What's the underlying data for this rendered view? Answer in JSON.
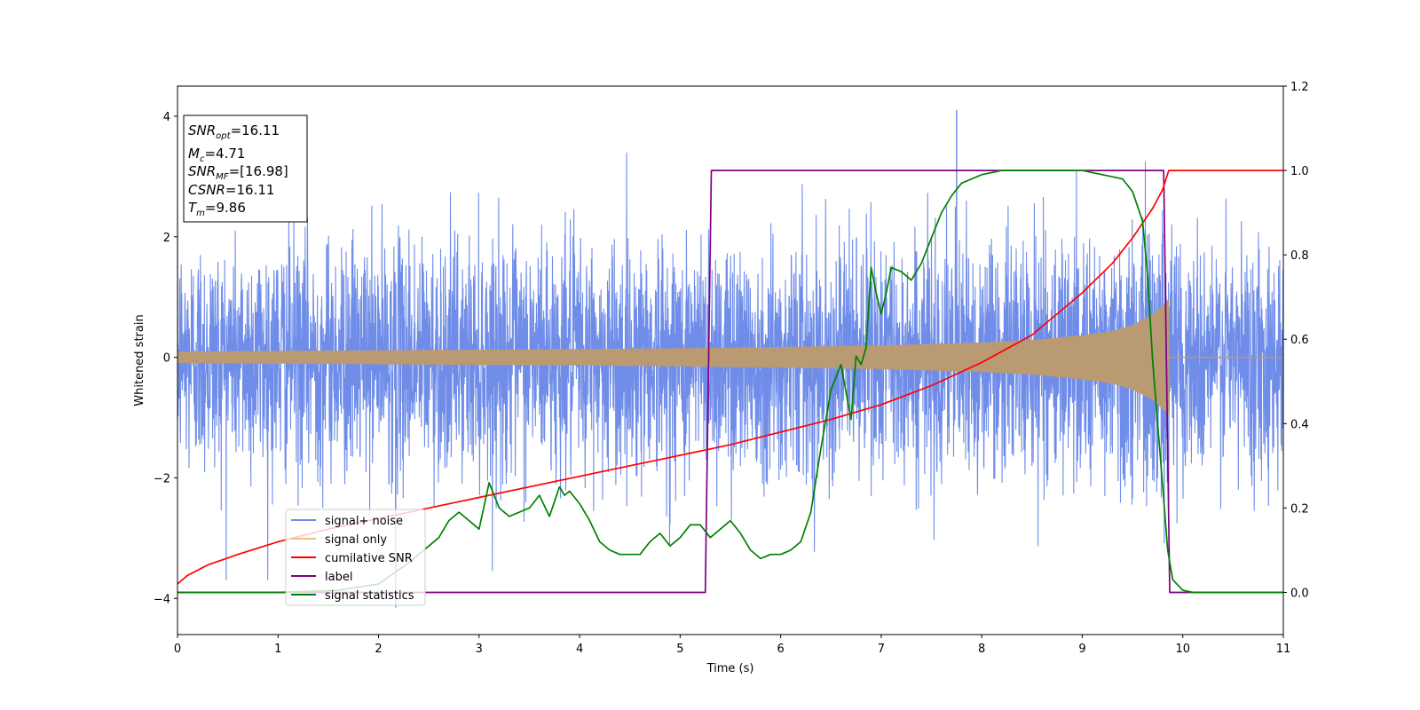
{
  "chart_data": {
    "type": "line",
    "title": "",
    "xlabel": "Time (s)",
    "ylabel": "Whitened strain",
    "y2label": "",
    "xlim": [
      0,
      11
    ],
    "ylim": [
      -4.6,
      4.5
    ],
    "y2lim": [
      -0.1,
      1.2
    ],
    "xticks": [
      0,
      1,
      2,
      3,
      4,
      5,
      6,
      7,
      8,
      9,
      10,
      11
    ],
    "yticks": [
      -4,
      -2,
      0,
      2,
      4
    ],
    "y2ticks": [
      0.0,
      0.2,
      0.4,
      0.6,
      0.8,
      1.0,
      1.2
    ],
    "y2tick_labels": [
      "0.0",
      "0.2",
      "0.4",
      "0.6",
      "0.8",
      "1.0",
      "1.2"
    ],
    "grid": false,
    "legend_position": "lower-left",
    "annotation_box": {
      "position": "upper-left",
      "lines": [
        {
          "sym": "SNR",
          "sub": "opt",
          "rest": "=16.11"
        },
        {
          "sym": "M",
          "sub": "c",
          "rest": "=4.71"
        },
        {
          "sym": "SNR",
          "sub": "MF",
          "rest": "=[16.98]"
        },
        {
          "sym": "CSNR",
          "sub": "",
          "rest": "=16.11"
        },
        {
          "sym": "T",
          "sub": "m",
          "rest": "=9.86"
        }
      ]
    },
    "series": [
      {
        "name": "signal+ noise",
        "axis": "left",
        "color": "#6f8de8",
        "kind": "noisy_waveform",
        "noise_std": 0.95,
        "peak_max": 4.1,
        "peak_max_x": 7.75,
        "peak_min": -4.15,
        "peak_min_x": 2.17
      },
      {
        "name": "signal only",
        "axis": "left",
        "color": "#f5c07a",
        "visible_color": "#b99a72",
        "kind": "chirp_envelope",
        "envelope": {
          "x": [
            0,
            1,
            2,
            3,
            4,
            5,
            6,
            7,
            8,
            8.5,
            9,
            9.3,
            9.5,
            9.7,
            9.8,
            9.86
          ],
          "y": [
            0.09,
            0.1,
            0.11,
            0.12,
            0.13,
            0.145,
            0.165,
            0.19,
            0.24,
            0.28,
            0.36,
            0.43,
            0.53,
            0.7,
            0.85,
            0.95
          ]
        },
        "end_x": 9.86
      },
      {
        "name": "cumilative SNR",
        "axis": "right",
        "color": "#ff0000",
        "x": [
          0,
          0.1,
          0.3,
          0.6,
          1,
          1.5,
          2,
          2.5,
          3,
          3.5,
          4,
          4.5,
          5,
          5.5,
          6,
          6.5,
          7,
          7.5,
          8,
          8.5,
          9,
          9.3,
          9.5,
          9.7,
          9.8,
          9.86,
          11
        ],
        "y": [
          0.02,
          0.04,
          0.065,
          0.09,
          0.12,
          0.15,
          0.175,
          0.2,
          0.225,
          0.25,
          0.275,
          0.3,
          0.325,
          0.35,
          0.38,
          0.41,
          0.445,
          0.49,
          0.545,
          0.61,
          0.71,
          0.78,
          0.84,
          0.91,
          0.955,
          1.0,
          1.0
        ]
      },
      {
        "name": "label",
        "axis": "right",
        "color": "#800080",
        "x": [
          0,
          5.25,
          5.31,
          9.81,
          9.87,
          11
        ],
        "y": [
          0,
          0,
          1,
          1,
          0,
          0
        ]
      },
      {
        "name": "signal statistics",
        "axis": "right",
        "color": "#008000",
        "x": [
          0,
          1.0,
          1.6,
          2.0,
          2.3,
          2.5,
          2.6,
          2.7,
          2.8,
          2.9,
          3.0,
          3.1,
          3.2,
          3.3,
          3.4,
          3.5,
          3.6,
          3.7,
          3.8,
          3.85,
          3.9,
          4.0,
          4.1,
          4.2,
          4.3,
          4.4,
          4.5,
          4.6,
          4.7,
          4.8,
          4.9,
          5.0,
          5.1,
          5.2,
          5.3,
          5.4,
          5.5,
          5.6,
          5.7,
          5.8,
          5.9,
          6.0,
          6.1,
          6.2,
          6.3,
          6.4,
          6.5,
          6.6,
          6.7,
          6.75,
          6.8,
          6.85,
          6.9,
          6.95,
          7.0,
          7.05,
          7.1,
          7.2,
          7.3,
          7.4,
          7.5,
          7.6,
          7.7,
          7.8,
          7.9,
          8.0,
          8.2,
          8.5,
          8.8,
          9.0,
          9.2,
          9.4,
          9.5,
          9.6,
          9.65,
          9.7,
          9.75,
          9.8,
          9.85,
          9.9,
          10.0,
          10.1,
          10.3,
          11.0
        ],
        "y": [
          0,
          0,
          0.005,
          0.02,
          0.07,
          0.11,
          0.13,
          0.17,
          0.19,
          0.17,
          0.15,
          0.26,
          0.2,
          0.18,
          0.19,
          0.2,
          0.23,
          0.18,
          0.25,
          0.23,
          0.24,
          0.21,
          0.17,
          0.12,
          0.1,
          0.09,
          0.09,
          0.09,
          0.12,
          0.14,
          0.11,
          0.13,
          0.16,
          0.16,
          0.13,
          0.15,
          0.17,
          0.14,
          0.1,
          0.08,
          0.09,
          0.09,
          0.1,
          0.12,
          0.19,
          0.34,
          0.48,
          0.54,
          0.41,
          0.56,
          0.54,
          0.58,
          0.77,
          0.71,
          0.66,
          0.71,
          0.77,
          0.76,
          0.74,
          0.78,
          0.84,
          0.9,
          0.94,
          0.97,
          0.98,
          0.99,
          1.0,
          1.0,
          1.0,
          1.0,
          0.99,
          0.98,
          0.95,
          0.88,
          0.75,
          0.55,
          0.4,
          0.25,
          0.1,
          0.03,
          0.005,
          0,
          0,
          0
        ]
      }
    ]
  }
}
